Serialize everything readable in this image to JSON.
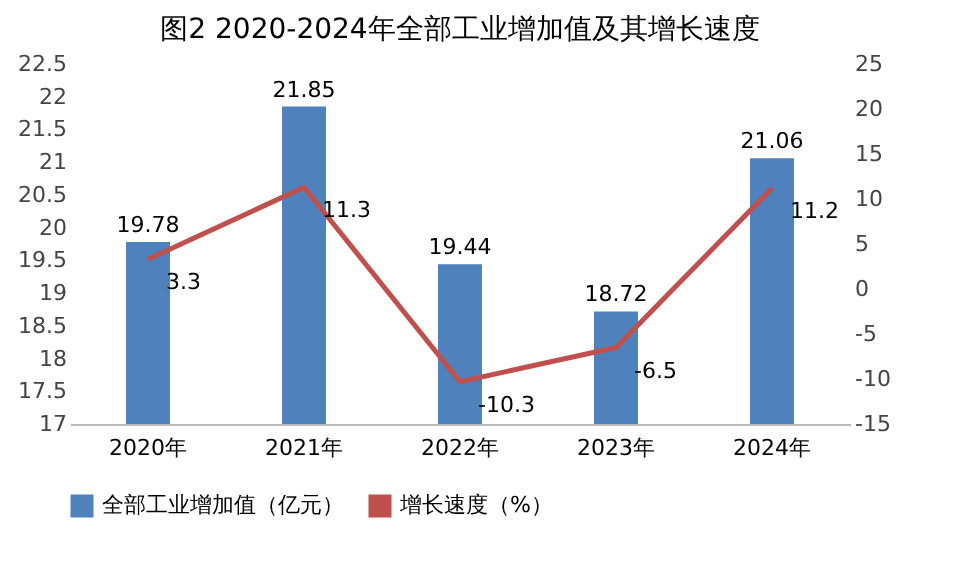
{
  "chart_data": {
    "type": "bar",
    "title": "图2  2020-2024年全部工业增加值及其增长速度",
    "categories": [
      "2020年",
      "2021年",
      "2022年",
      "2023年",
      "2024年"
    ],
    "series": [
      {
        "name": "全部工业增加值（亿元）",
        "color": "#4f81bd",
        "values": [
          19.78,
          21.85,
          19.44,
          18.72,
          21.06
        ]
      },
      {
        "name": "增长速度（%）",
        "type": "line",
        "axis": "y2",
        "color": "#c0504d",
        "values": [
          3.3,
          11.3,
          -10.3,
          -6.5,
          11.2
        ]
      }
    ],
    "ylim": [
      17,
      22.5
    ],
    "yticks": [
      17,
      17.5,
      18,
      18.5,
      19,
      19.5,
      20,
      20.5,
      21,
      21.5,
      22,
      22.5
    ],
    "y2lim": [
      -15,
      25
    ],
    "y2ticks": [
      -15,
      -10,
      -5,
      0,
      5,
      10,
      15,
      20,
      25
    ],
    "data_labels": true,
    "legend": "bottom",
    "grid": false,
    "marker": "none",
    "line_style": "solid"
  }
}
